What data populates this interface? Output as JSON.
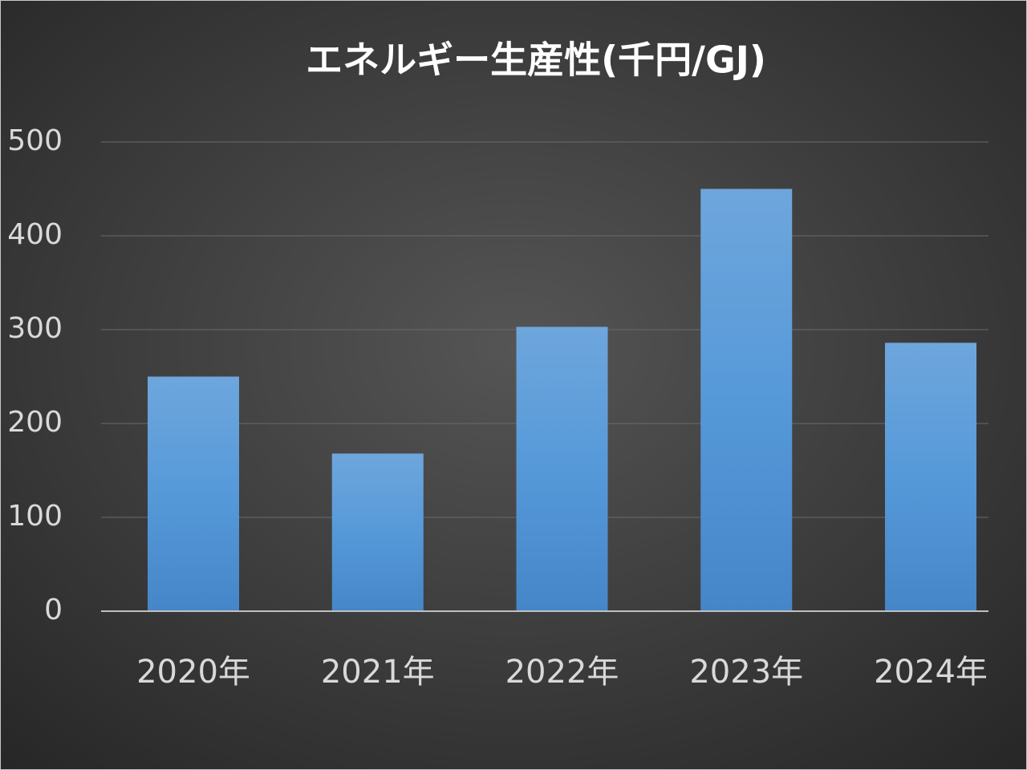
{
  "chart_data": {
    "type": "bar",
    "title": "エネルギー生産性(千円/GJ)",
    "categories": [
      "2020年",
      "2021年",
      "2022年",
      "2023年",
      "2024年"
    ],
    "values": [
      250,
      168,
      303,
      450,
      286
    ],
    "color": "#5b9bd5",
    "ylim": [
      0,
      500
    ],
    "yticks": [
      0,
      100,
      200,
      300,
      400,
      500
    ],
    "grid": true
  }
}
